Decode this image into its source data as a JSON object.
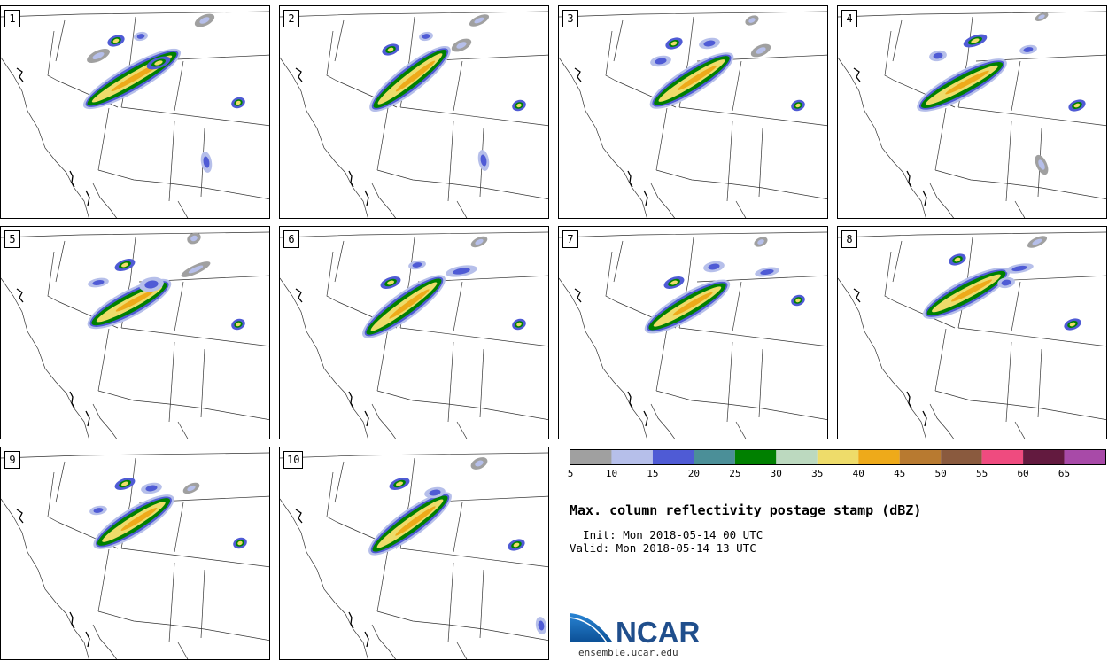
{
  "panels": [
    {
      "label": "1"
    },
    {
      "label": "2"
    },
    {
      "label": "3"
    },
    {
      "label": "4"
    },
    {
      "label": "5"
    },
    {
      "label": "6"
    },
    {
      "label": "7"
    },
    {
      "label": "8"
    },
    {
      "label": "9"
    },
    {
      "label": "10"
    }
  ],
  "colorbar": {
    "bounds": [
      5,
      10,
      15,
      20,
      25,
      30,
      35,
      40,
      45,
      50,
      55,
      60,
      65
    ],
    "tick_labels": [
      "5",
      "10",
      "15",
      "20",
      "25",
      "30",
      "35",
      "40",
      "45",
      "50",
      "55",
      "60",
      "65"
    ],
    "colors": [
      "#a0a0a0",
      "#b6bfea",
      "#4f5bd5",
      "#4b8f98",
      "#008000",
      "#bcd9bf",
      "#eedc6a",
      "#eeaa1a",
      "#b87a30",
      "#8a5a3e",
      "#ef4b7f",
      "#631a3f",
      "#a84aa8"
    ]
  },
  "title": "Max. column reflectivity postage stamp (dBZ)",
  "init_label": "  Init: Mon 2018-05-14 00 UTC",
  "valid_label": "Valid: Mon 2018-05-14 13 UTC",
  "logo": {
    "text": "NCAR",
    "url": "ensemble.ucar.edu",
    "color": "#1f4e8c"
  }
}
